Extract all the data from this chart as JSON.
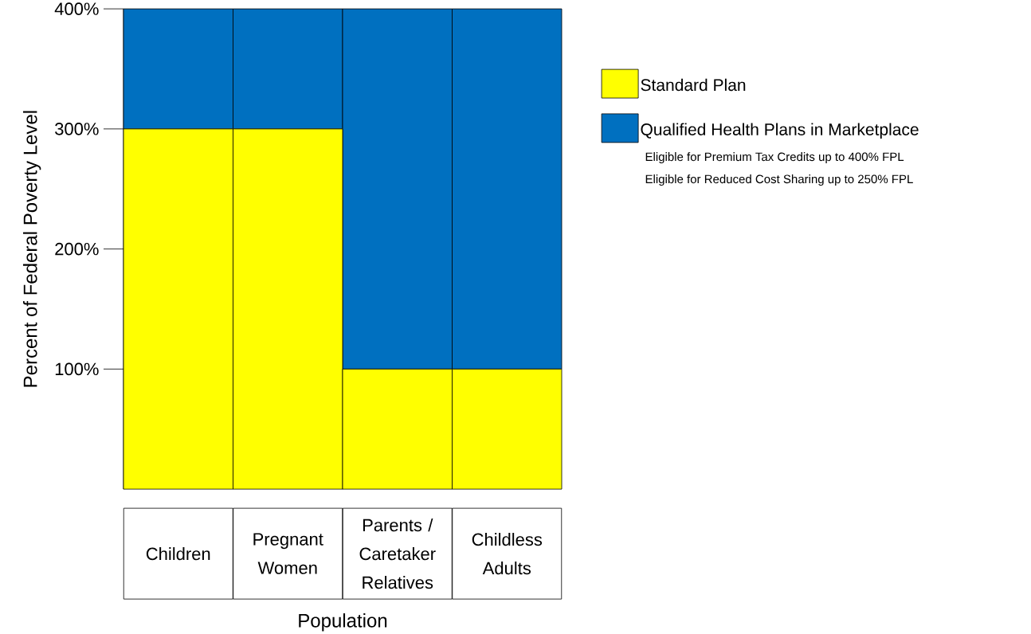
{
  "chart_data": {
    "type": "bar",
    "stacked": true,
    "xlabel": "Population",
    "ylabel": "Percent of Federal Poverty Level",
    "categories": [
      "Children",
      "Pregnant Women",
      "Parents / Caretaker Relatives",
      "Childless Adults"
    ],
    "series": [
      {
        "name": "Standard Plan",
        "color": "#ffff00",
        "values": [
          300,
          300,
          100,
          100
        ]
      },
      {
        "name": "Qualified Health Plans in Marketplace",
        "color": "#0070c0",
        "values": [
          100,
          100,
          300,
          300
        ]
      }
    ],
    "ylim": [
      0,
      400
    ],
    "yticks": [
      {
        "value": 100,
        "label": "100%"
      },
      {
        "value": 200,
        "label": "200%"
      },
      {
        "value": 300,
        "label": "300%"
      },
      {
        "value": 400,
        "label": "400%"
      }
    ],
    "legend": "right",
    "annotations": [
      "Eligible for Premium Tax Credits up to 400% FPL",
      "Eligible for Reduced Cost Sharing up to 250% FPL"
    ]
  }
}
